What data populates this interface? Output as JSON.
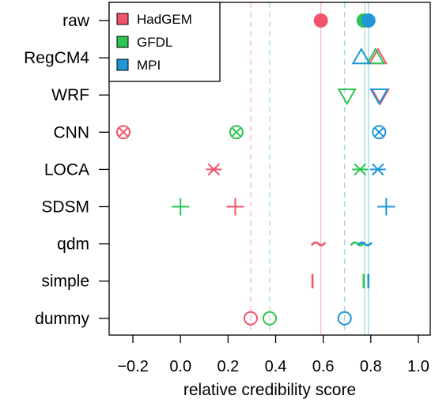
{
  "chart_data": {
    "type": "scatter",
    "title": "",
    "xlabel": "relative credibility score",
    "ylabel": "",
    "xlim": [
      -0.3,
      1.05
    ],
    "x_ticks": [
      -0.2,
      0.0,
      0.2,
      0.4,
      0.6,
      0.8,
      1.0
    ],
    "x_tick_labels": [
      "−0.2",
      "0.0",
      "0.2",
      "0.4",
      "0.6",
      "0.8",
      "1.0"
    ],
    "categories": [
      "raw",
      "RegCM4",
      "WRF",
      "CNN",
      "LOCA",
      "SDSM",
      "qdm",
      "simple",
      "dummy"
    ],
    "grid": false,
    "legend": {
      "position": "top-left",
      "entries": [
        "HadGEM",
        "GFDL",
        "MPI"
      ]
    },
    "reference_lines": [
      {
        "series": "HadGEM",
        "kind": "vertical-solid",
        "x": 0.59
      },
      {
        "series": "GFDL",
        "kind": "vertical-solid",
        "x": 0.775
      },
      {
        "series": "MPI",
        "kind": "vertical-solid",
        "x": 0.79
      },
      {
        "series": "HadGEM",
        "kind": "vertical-dashed",
        "x": 0.295
      },
      {
        "series": "GFDL",
        "kind": "vertical-dashed",
        "x": 0.375
      },
      {
        "series": "MPI",
        "kind": "vertical-dashed",
        "x": 0.69
      }
    ],
    "series": [
      {
        "name": "HadGEM",
        "color": "#F2546B",
        "points": [
          {
            "category": "raw",
            "x": 0.59,
            "marker": "filled-circle"
          },
          {
            "category": "RegCM4",
            "x": 0.83,
            "marker": "triangle-up"
          },
          {
            "category": "WRF",
            "x": 0.84,
            "marker": "triangle-down"
          },
          {
            "category": "CNN",
            "x": -0.24,
            "marker": "circle-x"
          },
          {
            "category": "LOCA",
            "x": 0.14,
            "marker": "asterisk"
          },
          {
            "category": "SDSM",
            "x": 0.23,
            "marker": "plus"
          },
          {
            "category": "qdm",
            "x": 0.58,
            "marker": "tilde"
          },
          {
            "category": "simple",
            "x": 0.555,
            "marker": "bar"
          },
          {
            "category": "dummy",
            "x": 0.295,
            "marker": "open-circle"
          }
        ]
      },
      {
        "name": "GFDL",
        "color": "#2DC653",
        "points": [
          {
            "category": "raw",
            "x": 0.77,
            "marker": "filled-circle"
          },
          {
            "category": "RegCM4",
            "x": 0.82,
            "marker": "triangle-up"
          },
          {
            "category": "WRF",
            "x": 0.7,
            "marker": "triangle-down"
          },
          {
            "category": "CNN",
            "x": 0.235,
            "marker": "circle-x"
          },
          {
            "category": "LOCA",
            "x": 0.755,
            "marker": "asterisk"
          },
          {
            "category": "SDSM",
            "x": 0.0,
            "marker": "plus"
          },
          {
            "category": "qdm",
            "x": 0.745,
            "marker": "tilde"
          },
          {
            "category": "simple",
            "x": 0.77,
            "marker": "bar"
          },
          {
            "category": "dummy",
            "x": 0.375,
            "marker": "open-circle"
          }
        ]
      },
      {
        "name": "MPI",
        "color": "#1F96D6",
        "points": [
          {
            "category": "raw",
            "x": 0.79,
            "marker": "filled-circle"
          },
          {
            "category": "RegCM4",
            "x": 0.76,
            "marker": "triangle-up"
          },
          {
            "category": "WRF",
            "x": 0.835,
            "marker": "triangle-down"
          },
          {
            "category": "CNN",
            "x": 0.835,
            "marker": "circle-x"
          },
          {
            "category": "LOCA",
            "x": 0.83,
            "marker": "asterisk"
          },
          {
            "category": "SDSM",
            "x": 0.865,
            "marker": "plus"
          },
          {
            "category": "qdm",
            "x": 0.775,
            "marker": "tilde"
          },
          {
            "category": "simple",
            "x": 0.79,
            "marker": "bar"
          },
          {
            "category": "dummy",
            "x": 0.69,
            "marker": "open-circle"
          }
        ]
      }
    ]
  }
}
